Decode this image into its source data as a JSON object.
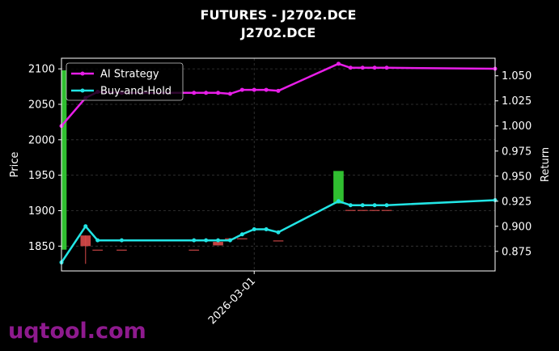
{
  "chart_data": {
    "type": "candlestick+line",
    "title": "FUTURES - J2702.DCE",
    "subtitle": "J2702.DCE",
    "ylabel_left": "Price",
    "ylabel_right": "Return",
    "xlim": [
      "2026-02-13",
      "2026-03-21"
    ],
    "ylim_left": [
      1815,
      2115
    ],
    "ylim_right": [
      0.8555,
      1.0675
    ],
    "yticks_left": [
      1850,
      1900,
      1950,
      2000,
      2050,
      2100
    ],
    "yticks_right": [
      0.875,
      0.9,
      0.925,
      0.95,
      0.975,
      1.0,
      1.025,
      1.05
    ],
    "ytick_labels_right": [
      "0.875",
      "0.900",
      "0.925",
      "0.950",
      "0.975",
      "1.000",
      "1.025",
      "1.050"
    ],
    "xticks": [
      "2026-03-01"
    ],
    "grid": true,
    "legend_position": "top-left",
    "candles": [
      {
        "date": "2026-02-13",
        "open": 1845,
        "close": 2098,
        "high": 2098,
        "low": 1845
      },
      {
        "date": "2026-02-15",
        "open": 1865,
        "close": 1850,
        "high": 1865,
        "low": 1825
      },
      {
        "date": "2026-02-16",
        "open": 1845,
        "close": 1844,
        "high": 1845,
        "low": 1844
      },
      {
        "date": "2026-02-18",
        "open": 1845,
        "close": 1844,
        "high": 1845,
        "low": 1844
      },
      {
        "date": "2026-02-24",
        "open": 1845,
        "close": 1844,
        "high": 1845,
        "low": 1844
      },
      {
        "date": "2026-02-26",
        "open": 1856,
        "close": 1851,
        "high": 1856,
        "low": 1851
      },
      {
        "date": "2026-02-27",
        "open": 1861,
        "close": 1860,
        "high": 1861,
        "low": 1860
      },
      {
        "date": "2026-02-28",
        "open": 1861,
        "close": 1860,
        "high": 1861,
        "low": 1860
      },
      {
        "date": "2026-03-03",
        "open": 1858,
        "close": 1857,
        "high": 1858,
        "low": 1857
      },
      {
        "date": "2026-03-08",
        "open": 1910,
        "close": 1956,
        "high": 1956,
        "low": 1910
      },
      {
        "date": "2026-03-09",
        "open": 1901,
        "close": 1900,
        "high": 1901,
        "low": 1900
      },
      {
        "date": "2026-03-10",
        "open": 1901,
        "close": 1900,
        "high": 1901,
        "low": 1900
      },
      {
        "date": "2026-03-11",
        "open": 1901,
        "close": 1900,
        "high": 1901,
        "low": 1900
      },
      {
        "date": "2026-03-12",
        "open": 1901,
        "close": 1900,
        "high": 1901,
        "low": 1900
      },
      {
        "date": "2026-03-21",
        "open": 1915,
        "close": 1914,
        "high": 1915,
        "low": 1914
      }
    ],
    "series": [
      {
        "name": "AI Strategy",
        "color": "#e81ee8",
        "x": [
          "2026-02-13",
          "2026-02-15",
          "2026-02-16",
          "2026-02-18",
          "2026-02-24",
          "2026-02-25",
          "2026-02-26",
          "2026-02-27",
          "2026-02-28",
          "2026-03-01",
          "2026-03-02",
          "2026-03-03",
          "2026-03-08",
          "2026-03-09",
          "2026-03-10",
          "2026-03-11",
          "2026-03-12",
          "2026-03-21"
        ],
        "values": [
          1.0,
          1.028,
          1.034,
          1.033,
          1.033,
          1.033,
          1.033,
          1.032,
          1.036,
          1.036,
          1.036,
          1.035,
          1.062,
          1.058,
          1.058,
          1.058,
          1.058,
          1.057
        ]
      },
      {
        "name": "Buy-and-Hold",
        "color": "#22e5e5",
        "x": [
          "2026-02-13",
          "2026-02-15",
          "2026-02-16",
          "2026-02-18",
          "2026-02-24",
          "2026-02-25",
          "2026-02-26",
          "2026-02-27",
          "2026-02-28",
          "2026-03-01",
          "2026-03-02",
          "2026-03-03",
          "2026-03-08",
          "2026-03-09",
          "2026-03-10",
          "2026-03-11",
          "2026-03-12",
          "2026-03-21"
        ],
        "values": [
          0.864,
          0.9,
          0.886,
          0.886,
          0.886,
          0.886,
          0.886,
          0.886,
          0.892,
          0.897,
          0.897,
          0.894,
          0.925,
          0.921,
          0.921,
          0.921,
          0.921,
          0.926
        ]
      }
    ],
    "colors": {
      "up": "#35d435",
      "down": "#d94a4a",
      "background": "#000000",
      "grid": "#3a3a3a"
    }
  },
  "watermark": "uqtool.com"
}
